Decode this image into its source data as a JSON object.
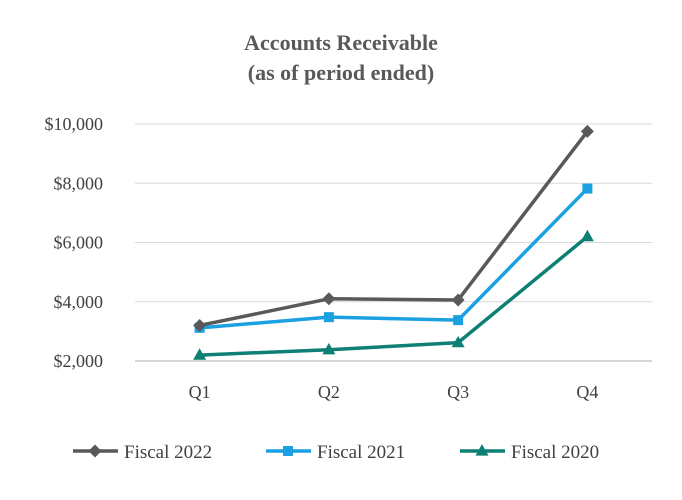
{
  "chart_data": {
    "type": "line",
    "title": [
      "Accounts Receivable",
      "(as of period ended)"
    ],
    "xlabel": "",
    "ylabel": "",
    "categories": [
      "Q1",
      "Q2",
      "Q3",
      "Q4"
    ],
    "ylim": [
      2000,
      10000
    ],
    "yticks": [
      2000,
      4000,
      6000,
      8000,
      10000
    ],
    "ytick_labels": [
      "$2,000",
      "$4,000",
      "$6,000",
      "$8,000",
      "$10,000"
    ],
    "grid": true,
    "legend_position": "bottom",
    "series": [
      {
        "name": "Fiscal 2022",
        "values": [
          3200,
          4100,
          4060,
          9750
        ],
        "color": "#595959",
        "marker": "diamond"
      },
      {
        "name": "Fiscal 2021",
        "values": [
          3120,
          3480,
          3380,
          7820
        ],
        "color": "#1ba1e2",
        "marker": "square"
      },
      {
        "name": "Fiscal 2020",
        "values": [
          2200,
          2380,
          2620,
          6200
        ],
        "color": "#0e7f74",
        "marker": "triangle"
      }
    ]
  }
}
